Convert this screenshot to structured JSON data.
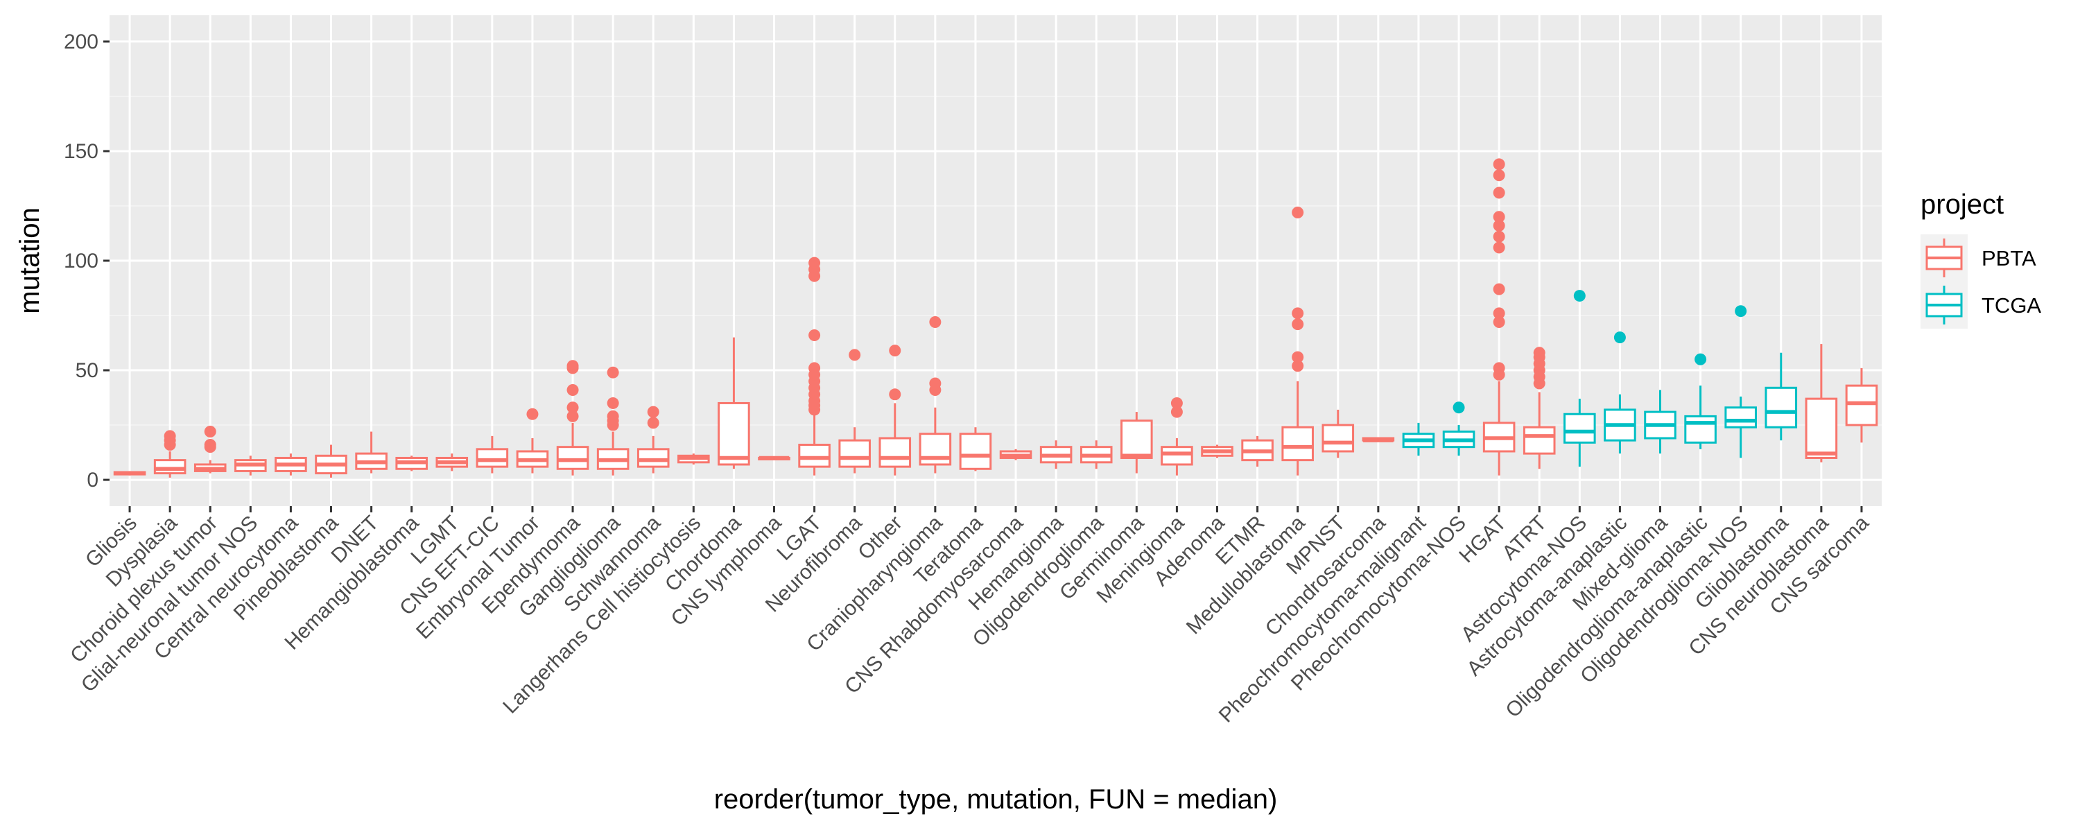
{
  "chart_data": {
    "type": "box",
    "xlabel": "reorder(tumor_type, mutation, FUN = median)",
    "ylabel": "mutation",
    "ylim": [
      -12,
      212
    ],
    "y_ticks": [
      0,
      50,
      100,
      150,
      200
    ],
    "grid": true,
    "legend": {
      "title": "project",
      "placement": "right",
      "entries": [
        {
          "name": "PBTA",
          "color": "#F8766D"
        },
        {
          "name": "TCGA",
          "color": "#00BFC4"
        }
      ]
    },
    "categories": [
      {
        "label": "Gliosis",
        "project": "PBTA",
        "stats": [
          2,
          2.5,
          3,
          3.5,
          4
        ],
        "outliers": []
      },
      {
        "label": "Dysplasia",
        "project": "PBTA",
        "stats": [
          1,
          3,
          5,
          9,
          13
        ],
        "outliers": [
          16,
          18,
          20
        ]
      },
      {
        "label": "Choroid plexus tumor",
        "project": "PBTA",
        "stats": [
          3,
          4,
          5,
          7,
          9
        ],
        "outliers": [
          15,
          16,
          22
        ]
      },
      {
        "label": "Glial-neuronal tumor NOS",
        "project": "PBTA",
        "stats": [
          2,
          4,
          7,
          9,
          11
        ],
        "outliers": []
      },
      {
        "label": "Central neurocytoma",
        "project": "PBTA",
        "stats": [
          2,
          4,
          7,
          10,
          12
        ],
        "outliers": []
      },
      {
        "label": "Pineoblastoma",
        "project": "PBTA",
        "stats": [
          1,
          3,
          7,
          11,
          16
        ],
        "outliers": []
      },
      {
        "label": "DNET",
        "project": "PBTA",
        "stats": [
          3,
          5,
          8,
          12,
          22
        ],
        "outliers": []
      },
      {
        "label": "Hemangioblastoma",
        "project": "PBTA",
        "stats": [
          4,
          5,
          8,
          10,
          11
        ],
        "outliers": []
      },
      {
        "label": "LGMT",
        "project": "PBTA",
        "stats": [
          4,
          6,
          8,
          10,
          12
        ],
        "outliers": []
      },
      {
        "label": "CNS EFT-CIC",
        "project": "PBTA",
        "stats": [
          3,
          6,
          9,
          14,
          20
        ],
        "outliers": []
      },
      {
        "label": "Embryonal Tumor",
        "project": "PBTA",
        "stats": [
          3,
          6,
          9,
          13,
          19
        ],
        "outliers": [
          30
        ]
      },
      {
        "label": "Ependymoma",
        "project": "PBTA",
        "stats": [
          2,
          5,
          9,
          15,
          26
        ],
        "outliers": [
          29,
          33,
          41,
          51,
          52
        ]
      },
      {
        "label": "Ganglioglioma",
        "project": "PBTA",
        "stats": [
          2,
          5,
          9,
          14,
          22
        ],
        "outliers": [
          25,
          27,
          29,
          35,
          49
        ]
      },
      {
        "label": "Schwannoma",
        "project": "PBTA",
        "stats": [
          3,
          6,
          9,
          14,
          20
        ],
        "outliers": [
          26,
          31
        ]
      },
      {
        "label": "Langerhans Cell histiocytosis",
        "project": "PBTA",
        "stats": [
          7,
          8,
          10,
          11,
          12
        ],
        "outliers": []
      },
      {
        "label": "Chordoma",
        "project": "PBTA",
        "stats": [
          5,
          7,
          10,
          35,
          65
        ],
        "outliers": []
      },
      {
        "label": "CNS lymphoma",
        "project": "PBTA",
        "stats": [
          10,
          10,
          10,
          10,
          10
        ],
        "outliers": []
      },
      {
        "label": "LGAT",
        "project": "PBTA",
        "stats": [
          2,
          6,
          10,
          16,
          30
        ],
        "outliers": [
          32,
          34,
          36,
          39,
          42,
          45,
          48,
          51,
          66,
          93,
          96,
          99
        ]
      },
      {
        "label": "Neurofibroma",
        "project": "PBTA",
        "stats": [
          3,
          6,
          10,
          18,
          24
        ],
        "outliers": [
          57
        ]
      },
      {
        "label": "Other",
        "project": "PBTA",
        "stats": [
          2,
          6,
          10,
          19,
          35
        ],
        "outliers": [
          39,
          59
        ]
      },
      {
        "label": "Craniopharyngioma",
        "project": "PBTA",
        "stats": [
          3,
          7,
          10,
          21,
          33
        ],
        "outliers": [
          41,
          44,
          72
        ]
      },
      {
        "label": "Teratoma",
        "project": "PBTA",
        "stats": [
          4,
          5,
          11,
          21,
          24
        ],
        "outliers": []
      },
      {
        "label": "CNS Rhabdomyosarcoma",
        "project": "PBTA",
        "stats": [
          9,
          10,
          11,
          13,
          14
        ],
        "outliers": []
      },
      {
        "label": "Hemangioma",
        "project": "PBTA",
        "stats": [
          5,
          8,
          11,
          15,
          18
        ],
        "outliers": []
      },
      {
        "label": "Oligodendroglioma",
        "project": "PBTA",
        "stats": [
          5,
          8,
          11,
          15,
          18
        ],
        "outliers": []
      },
      {
        "label": "Germinoma",
        "project": "PBTA",
        "stats": [
          3,
          10,
          11,
          27,
          31
        ],
        "outliers": []
      },
      {
        "label": "Meningioma",
        "project": "PBTA",
        "stats": [
          2,
          7,
          12,
          15,
          19
        ],
        "outliers": [
          31,
          35
        ]
      },
      {
        "label": "Adenoma",
        "project": "PBTA",
        "stats": [
          10,
          11,
          13,
          15,
          16
        ],
        "outliers": []
      },
      {
        "label": "ETMR",
        "project": "PBTA",
        "stats": [
          6,
          9,
          13,
          18,
          20
        ],
        "outliers": []
      },
      {
        "label": "Medulloblastoma",
        "project": "PBTA",
        "stats": [
          2,
          9,
          15,
          24,
          45
        ],
        "outliers": [
          52,
          56,
          71,
          76,
          122
        ]
      },
      {
        "label": "MPNST",
        "project": "PBTA",
        "stats": [
          10,
          13,
          17,
          25,
          32
        ],
        "outliers": []
      },
      {
        "label": "Chondrosarcoma",
        "project": "PBTA",
        "stats": [
          18,
          18,
          18,
          19,
          19
        ],
        "outliers": []
      },
      {
        "label": "Pheochromocytoma-malignant",
        "project": "TCGA",
        "stats": [
          11,
          15,
          18,
          21,
          26
        ],
        "outliers": []
      },
      {
        "label": "Pheochromocytoma-NOS",
        "project": "TCGA",
        "stats": [
          11,
          15,
          18,
          22,
          25
        ],
        "outliers": [
          33
        ]
      },
      {
        "label": "HGAT",
        "project": "PBTA",
        "stats": [
          2,
          13,
          19,
          26,
          45
        ],
        "outliers": [
          48,
          51,
          72,
          76,
          87,
          106,
          111,
          116,
          120,
          131,
          139,
          144
        ]
      },
      {
        "label": "ATRT",
        "project": "PBTA",
        "stats": [
          5,
          12,
          20,
          24,
          40
        ],
        "outliers": [
          44,
          47,
          50,
          53,
          56,
          58
        ]
      },
      {
        "label": "Astrocytoma-NOS",
        "project": "TCGA",
        "stats": [
          6,
          17,
          22,
          30,
          37
        ],
        "outliers": [
          84
        ]
      },
      {
        "label": "Astrocytoma-anaplastic",
        "project": "TCGA",
        "stats": [
          12,
          18,
          25,
          32,
          39
        ],
        "outliers": [
          65
        ]
      },
      {
        "label": "Mixed-glioma",
        "project": "TCGA",
        "stats": [
          12,
          19,
          25,
          31,
          41
        ],
        "outliers": []
      },
      {
        "label": "Oligodendroglioma-anaplastic",
        "project": "TCGA",
        "stats": [
          14,
          17,
          26,
          29,
          43
        ],
        "outliers": [
          55
        ]
      },
      {
        "label": "Oligodendroglioma-NOS",
        "project": "TCGA",
        "stats": [
          10,
          24,
          27,
          33,
          38
        ],
        "outliers": [
          77
        ]
      },
      {
        "label": "Glioblastoma",
        "project": "TCGA",
        "stats": [
          18,
          24,
          31,
          42,
          58
        ],
        "outliers": []
      },
      {
        "label": "CNS neuroblastoma",
        "project": "PBTA",
        "stats": [
          8,
          10,
          12,
          37,
          62
        ],
        "outliers": []
      },
      {
        "label": "CNS sarcoma",
        "project": "PBTA",
        "stats": [
          17,
          25,
          35,
          43,
          51
        ],
        "outliers": []
      }
    ]
  }
}
